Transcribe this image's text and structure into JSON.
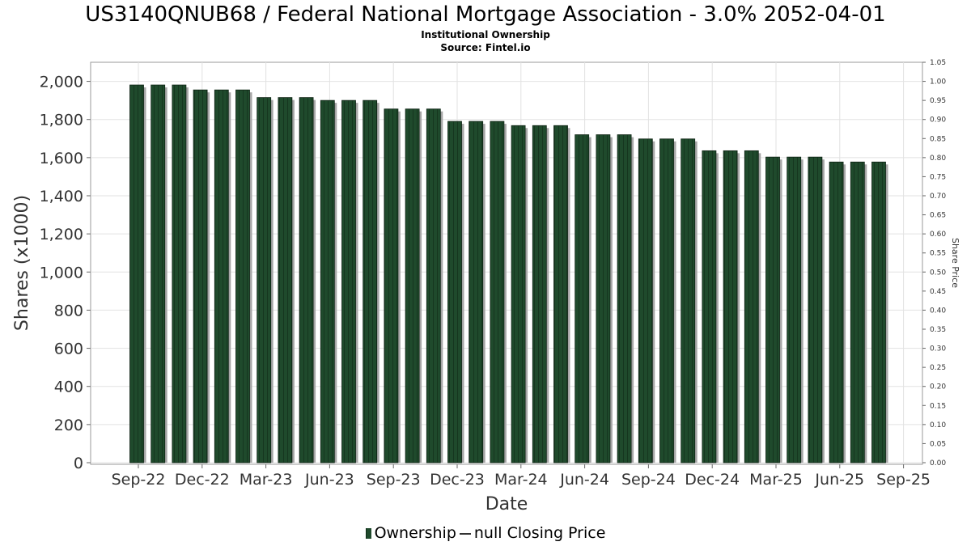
{
  "chart_data": {
    "type": "bar",
    "title": "US3140QNUB68 / Federal National Mortgage Association - 3.0% 2052-04-01",
    "subtitle": [
      "Institutional Ownership",
      "Source: Fintel.io"
    ],
    "xlabel": "Date",
    "ylabel": "Shares (x1000)",
    "y2label": "Share Price",
    "ylim": [
      0,
      2100
    ],
    "y2lim": [
      0,
      1.05
    ],
    "yticks": [
      "0",
      "200",
      "400",
      "600",
      "800",
      "1,000",
      "1,200",
      "1,400",
      "1,600",
      "1,800",
      "2,000"
    ],
    "y2ticks": [
      "0.00",
      "0.05",
      "0.10",
      "0.15",
      "0.20",
      "0.25",
      "0.30",
      "0.35",
      "0.40",
      "0.45",
      "0.50",
      "0.55",
      "0.60",
      "0.65",
      "0.70",
      "0.75",
      "0.80",
      "0.85",
      "0.90",
      "0.95",
      "1.00",
      "1.05"
    ],
    "xticks": [
      "Sep-22",
      "Dec-22",
      "Mar-23",
      "Jun-23",
      "Sep-23",
      "Dec-23",
      "Mar-24",
      "Jun-24",
      "Sep-24",
      "Dec-24",
      "Mar-25",
      "Jun-25",
      "Sep-25"
    ],
    "grid": true,
    "legend_placement": "bottom",
    "series": [
      {
        "name": "Ownership",
        "color": "#1f4a2c",
        "values": [
          1981,
          1981,
          1981,
          1955,
          1955,
          1955,
          1915,
          1915,
          1915,
          1900,
          1900,
          1900,
          1855,
          1855,
          1855,
          1790,
          1790,
          1790,
          1768,
          1768,
          1768,
          1720,
          1720,
          1720,
          1698,
          1698,
          1698,
          1636,
          1636,
          1636,
          1603,
          1603,
          1603,
          1577,
          1577,
          1577
        ]
      },
      {
        "name": "null Closing Price",
        "color": "#333333",
        "values": []
      }
    ]
  }
}
